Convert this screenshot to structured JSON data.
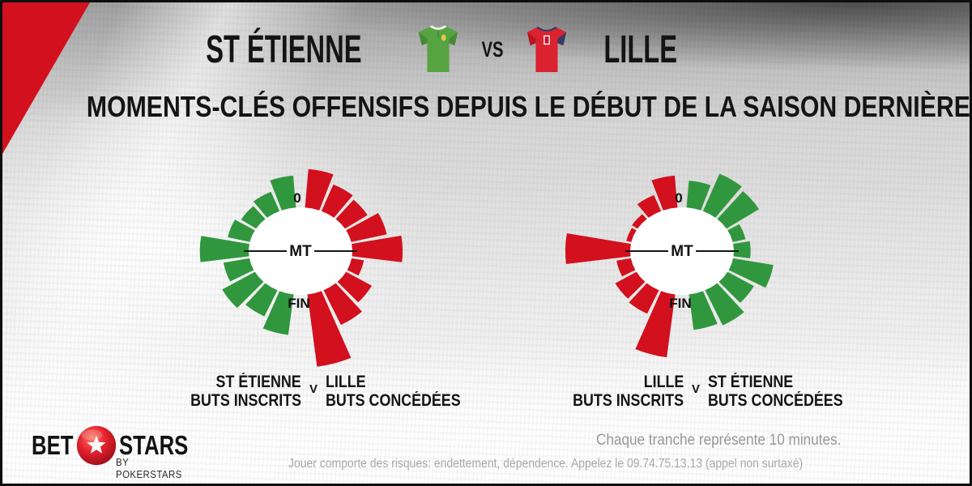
{
  "header": {
    "home": "ST ÉTIENNE",
    "vs": "VS",
    "away": "LILLE"
  },
  "subtitle": "MOMENTS-CLÉS OFFENSIFS DEPUIS LE DÉBUT DE LA SAISON DERNIÈRE",
  "chart_data": [
    {
      "type": "radial-bar",
      "id": "left",
      "tranche_minutes": 10,
      "tranches_per_half": 9,
      "value_scale": "relative bar length 0-100 (100 = longest bar on page)",
      "axis_labels": {
        "start": "0",
        "half": "MT",
        "end": "FIN"
      },
      "series": [
        {
          "name": "ST ÉTIENNE BUTS INSCRITS",
          "side": "left",
          "color": "#31973e",
          "values": [
            44,
            29,
            24,
            31,
            67,
            36,
            51,
            40,
            56
          ]
        },
        {
          "name": "LILLE BUTS CONCÉDÉES",
          "side": "right",
          "color": "#d2101e",
          "values": [
            53,
            40,
            36,
            50,
            69,
            17,
            40,
            53,
            100
          ]
        }
      ],
      "footer": {
        "left_lines": [
          "ST ÉTIENNE",
          "BUTS INSCRITS"
        ],
        "separator": "V",
        "right_lines": [
          "LILLE",
          "BUTS CONCÉDÉES"
        ]
      }
    },
    {
      "type": "radial-bar",
      "id": "right",
      "tranche_minutes": 10,
      "tranches_per_half": 9,
      "value_scale": "relative bar length 0-100 (100 = longest bar on page)",
      "axis_labels": {
        "start": "0",
        "half": "MT",
        "end": "FIN"
      },
      "series": [
        {
          "name": "LILLE BUTS INSCRITS",
          "side": "left",
          "color": "#d2101e",
          "values": [
            44,
            24,
            9,
            7,
            89,
            20,
            33,
            36,
            87
          ]
        },
        {
          "name": "ST ÉTIENNE BUTS CONCÉDÉES",
          "side": "right",
          "color": "#31973e",
          "values": [
            37,
            56,
            52,
            18,
            23,
            56,
            41,
            54,
            49
          ]
        }
      ],
      "footer": {
        "left_lines": [
          "LILLE",
          "BUTS INSCRITS"
        ],
        "separator": "V",
        "right_lines": [
          "ST ÉTIENNE",
          "BUTS CONCÉDÉES"
        ]
      }
    }
  ],
  "legend_note": "Chaque tranche représente 10 minutes.",
  "footer": {
    "logo": {
      "bet": "BET",
      "stars": "STARS",
      "byline": "BY POKERSTARS"
    },
    "disclaimer": "Jouer comporte des risques: endettement, dépendence. Appelez le 09.74.75.13.13 (appel non surtaxé)"
  },
  "colors": {
    "accent_red": "#d2101e",
    "green": "#31973e",
    "text_black": "#141414"
  }
}
